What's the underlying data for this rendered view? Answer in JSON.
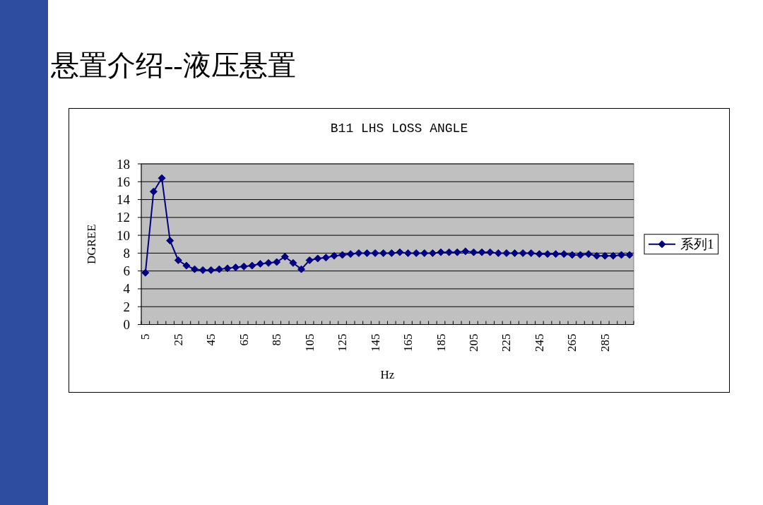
{
  "chart_data": {
    "type": "line",
    "title": "悬置介绍--液压悬置",
    "subtitle": "B11 LHS LOSS ANGLE",
    "xlabel": "Hz",
    "ylabel": "DGREE",
    "categories": [
      "5",
      null,
      null,
      null,
      "25",
      null,
      null,
      null,
      "45",
      null,
      null,
      null,
      "65",
      null,
      null,
      null,
      "85",
      null,
      null,
      null,
      "105",
      null,
      null,
      null,
      "125",
      null,
      null,
      null,
      "145",
      null,
      null,
      null,
      "165",
      null,
      null,
      null,
      "185",
      null,
      null,
      null,
      "205",
      null,
      null,
      null,
      "225",
      null,
      null,
      null,
      "245",
      null,
      null,
      null,
      "265",
      null,
      null,
      null,
      "285",
      null,
      null,
      null
    ],
    "series": [
      {
        "name": "系列1",
        "color": "#000080",
        "values": [
          5.8,
          14.9,
          16.4,
          9.4,
          7.2,
          6.6,
          6.2,
          6.1,
          6.1,
          6.2,
          6.3,
          6.4,
          6.5,
          6.6,
          6.8,
          6.9,
          7.0,
          7.6,
          6.9,
          6.2,
          7.2,
          7.4,
          7.5,
          7.7,
          7.8,
          7.9,
          8.0,
          8.0,
          8.0,
          8.0,
          8.0,
          8.1,
          8.0,
          8.0,
          8.0,
          8.0,
          8.1,
          8.1,
          8.1,
          8.2,
          8.1,
          8.1,
          8.1,
          8.0,
          8.0,
          8.0,
          8.0,
          8.0,
          7.9,
          7.9,
          7.9,
          7.9,
          7.8,
          7.8,
          7.9,
          7.7,
          7.7,
          7.7,
          7.8,
          7.8
        ]
      }
    ],
    "ylim": [
      0,
      18
    ],
    "yticks": [
      0,
      2,
      4,
      6,
      8,
      10,
      12,
      14,
      16,
      18
    ],
    "grid": "y",
    "legend": "right",
    "marker": "diamond",
    "line_style": "solid"
  }
}
